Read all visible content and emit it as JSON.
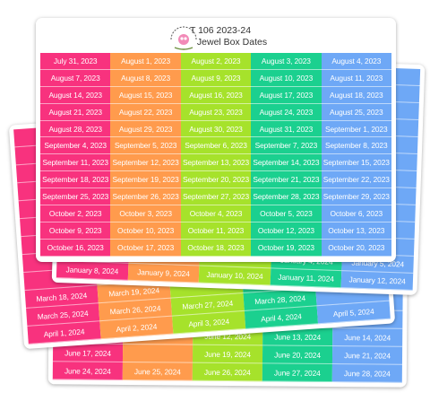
{
  "front": {
    "code": "T 106 2023-24",
    "title": "Jewel Box Dates",
    "rows": [
      [
        "July 31, 2023",
        "August 1, 2023",
        "August 2, 2023",
        "August 3, 2023",
        "August 4, 2023"
      ],
      [
        "August 7, 2023",
        "August 8, 2023",
        "August 9, 2023",
        "August 10, 2023",
        "August 11, 2023"
      ],
      [
        "August 14, 2023",
        "August 15, 2023",
        "August 16, 2023",
        "August 17, 2023",
        "August 18, 2023"
      ],
      [
        "August 21, 2023",
        "August 22, 2023",
        "August 23, 2023",
        "August 24, 2023",
        "August 25, 2023"
      ],
      [
        "August 28, 2023",
        "August 29, 2023",
        "August 30, 2023",
        "August 31, 2023",
        "September 1, 2023"
      ],
      [
        "September 4, 2023",
        "September 5, 2023",
        "September 6, 2023",
        "September 7, 2023",
        "September 8, 2023"
      ],
      [
        "September 11, 2023",
        "September 12, 2023",
        "September 13, 2023",
        "September 14, 2023",
        "September 15, 2023"
      ],
      [
        "September 18, 2023",
        "September 19, 2023",
        "September 20, 2023",
        "September 21, 2023",
        "September 22, 2023"
      ],
      [
        "September 25, 2023",
        "September 26, 2023",
        "September 27, 2023",
        "September 28, 2023",
        "September 29, 2023"
      ],
      [
        "October 2, 2023",
        "October 3, 2023",
        "October 4, 2023",
        "October 5, 2023",
        "October 6, 2023"
      ],
      [
        "October 9, 2023",
        "October 10, 2023",
        "October 11, 2023",
        "October 12, 2023",
        "October 13, 2023"
      ],
      [
        "October 16, 2023",
        "October 17, 2023",
        "October 18, 2023",
        "October 19, 2023",
        "October 20, 2023"
      ]
    ]
  },
  "back_sheets": [
    {
      "rows": [
        [
          null,
          null,
          "June 12, 2024",
          "June 13, 2024",
          "June 14, 2024"
        ],
        [
          "June 17, 2024",
          null,
          "June 19, 2024",
          "June 20, 2024",
          "June 21, 2024"
        ],
        [
          "June 24, 2024",
          "June 25, 2024",
          "June 26, 2024",
          "June 27, 2024",
          "June 28, 2024"
        ]
      ]
    },
    {
      "rows": [
        [
          "March 18, 2024",
          "March 19, 2024",
          null,
          null,
          null
        ],
        [
          "March 25, 2024",
          "March 26, 2024",
          "March 27, 2024",
          "March 28, 2024",
          null
        ],
        [
          "April 1, 2024",
          "April 2, 2024",
          "April 3, 2024",
          "April 4, 2024",
          "April 5, 2024"
        ]
      ]
    },
    {
      "rows": [
        [
          null,
          null,
          null,
          "January 4, 2024",
          "January 5, 2024"
        ],
        [
          "January 8, 2024",
          "January 9, 2024",
          "January 10, 2024",
          "January 11, 2024",
          "January 12, 2024"
        ]
      ]
    }
  ]
}
